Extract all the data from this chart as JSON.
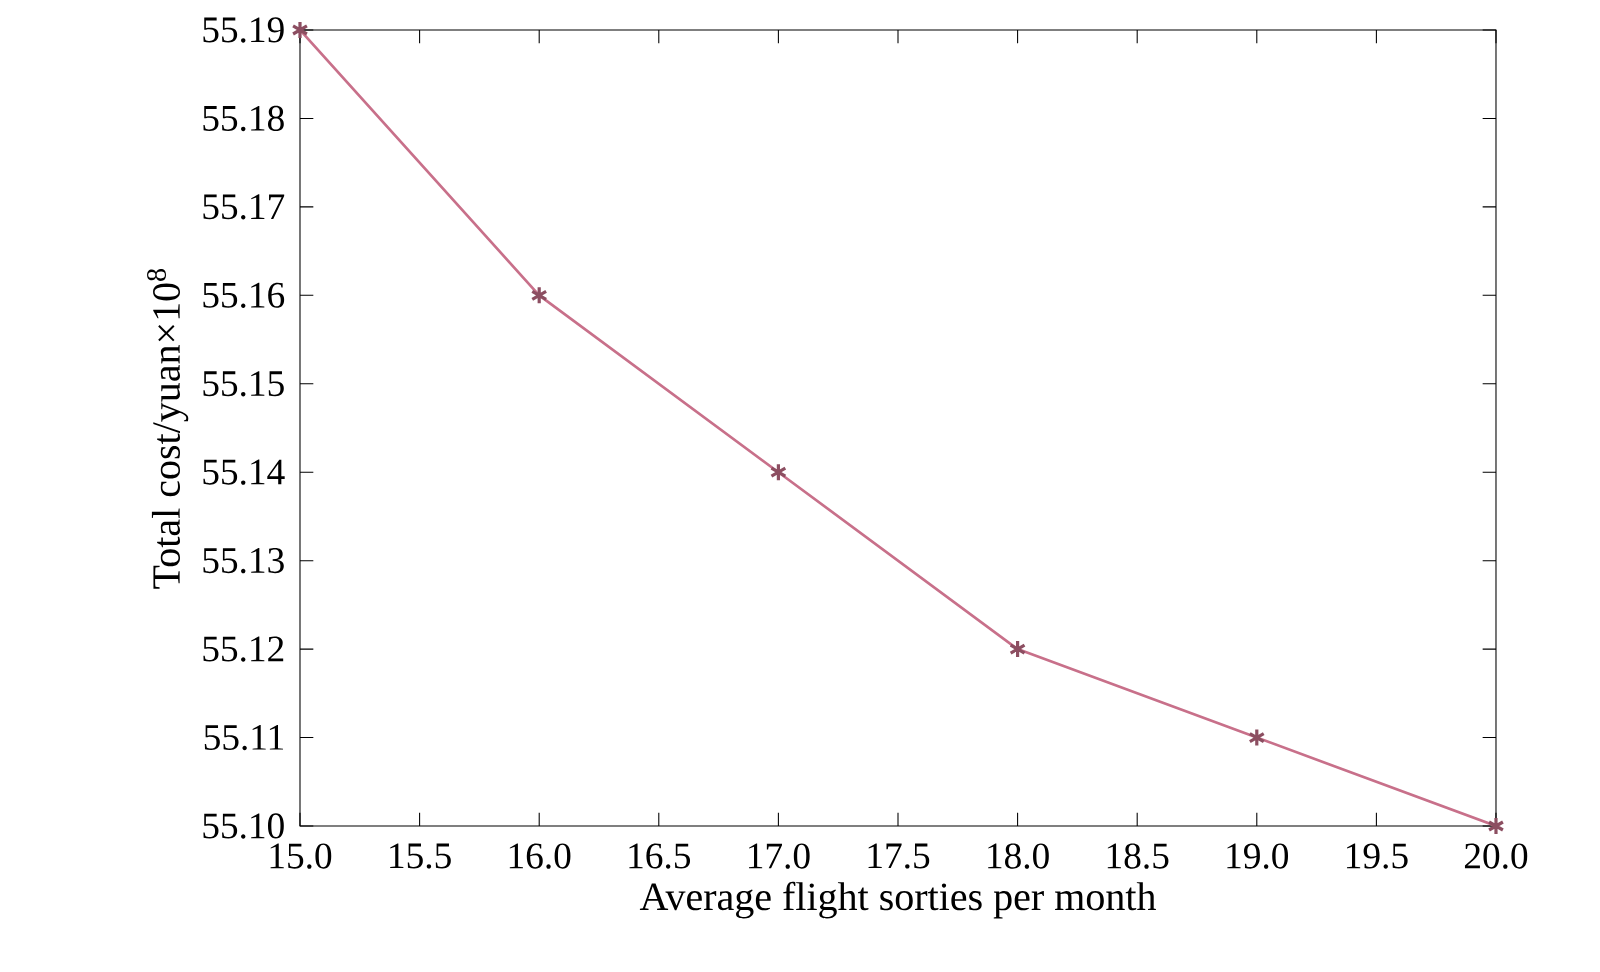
{
  "chart_data": {
    "type": "line",
    "xlabel": "Average flight sorties per month",
    "ylabel": "Total cost/yuan×10$^{8}$",
    "x": [
      15,
      16,
      17,
      18,
      19,
      20
    ],
    "series": [
      {
        "color": "#c8708a",
        "values": [
          55.19,
          55.16,
          55.14,
          55.12,
          55.11,
          55.1
        ]
      }
    ],
    "marker": "cross",
    "xlim": [
      15,
      20
    ],
    "ylim": [
      55.1,
      55.19
    ],
    "xticks": [
      {
        "value": 15,
        "label": "15.0"
      },
      {
        "value": 15.5,
        "label": "15.5"
      },
      {
        "value": 16,
        "label": "16.0"
      },
      {
        "value": 16.5,
        "label": "16.5"
      },
      {
        "value": 17,
        "label": "17.0"
      },
      {
        "value": 17.5,
        "label": "17.5"
      },
      {
        "value": 18,
        "label": "18.0"
      },
      {
        "value": 18.5,
        "label": "18.5"
      },
      {
        "value": 19,
        "label": "19.0"
      },
      {
        "value": 19.5,
        "label": "19.5"
      },
      {
        "value": 20,
        "label": "20.0"
      }
    ],
    "yticks": [
      {
        "value": 55.1,
        "label": "55.10"
      },
      55.11,
      55.12,
      55.13,
      55.14,
      55.15,
      55.16,
      55.17,
      55.18,
      55.19
    ]
  }
}
